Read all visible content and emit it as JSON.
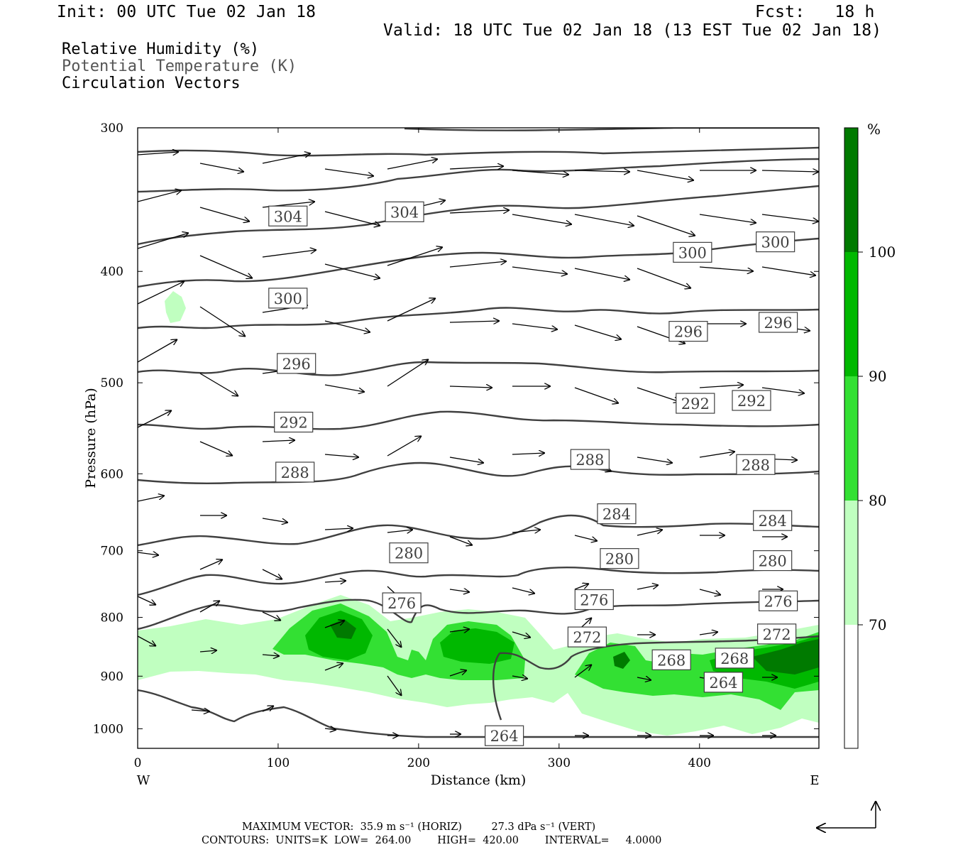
{
  "header": {
    "init": "Init: 00 UTC Tue 02 Jan 18",
    "fcst": "Fcst:   18 h",
    "valid": "Valid: 18 UTC Tue 02 Jan 18 (13 EST Tue 02 Jan 18)"
  },
  "legend": {
    "rh": "Relative Humidity (%)",
    "theta": "Potential Temperature (K)",
    "vectors": "Circulation Vectors"
  },
  "colors": {
    "rh70": "#c0ffc0",
    "rh80": "#33e033",
    "rh90": "#00b800",
    "rh100": "#007a00",
    "contour": "#404040"
  },
  "chart_data": {
    "type": "cross-section",
    "xlabel": "Distance (km)",
    "ylabel": "Pressure (hPa)",
    "x_ticks": [
      0,
      100,
      200,
      300,
      400
    ],
    "y_ticks": [
      300,
      400,
      500,
      600,
      700,
      800,
      900,
      1000
    ],
    "xlim": [
      0,
      485
    ],
    "ylim": [
      1040,
      300
    ],
    "y_scale": "log",
    "x_end_labels": {
      "left": "W",
      "right": "E"
    },
    "colorbar": {
      "unit": "%",
      "levels": [
        70,
        80,
        90,
        100
      ],
      "tick_labels": [
        "100",
        "90",
        "80",
        "70"
      ]
    },
    "theta_contours": [
      {
        "value": 264,
        "label": "264"
      },
      {
        "value": 268,
        "label": "268"
      },
      {
        "value": 272,
        "label": "272"
      },
      {
        "value": 276,
        "label": "276"
      },
      {
        "value": 280,
        "label": "280"
      },
      {
        "value": 284,
        "label": "284"
      },
      {
        "value": 288,
        "label": "288"
      },
      {
        "value": 292,
        "label": "292"
      },
      {
        "value": 296,
        "label": "296"
      },
      {
        "value": 300,
        "label": "300"
      },
      {
        "value": 304,
        "label": "304"
      }
    ],
    "contour_labels": [
      {
        "text": "304",
        "x": 107,
        "p": 358
      },
      {
        "text": "304",
        "x": 190,
        "p": 355
      },
      {
        "text": "300",
        "x": 395,
        "p": 385
      },
      {
        "text": "300",
        "x": 454,
        "p": 377
      },
      {
        "text": "300",
        "x": 107,
        "p": 422
      },
      {
        "text": "296",
        "x": 392,
        "p": 451
      },
      {
        "text": "296",
        "x": 456,
        "p": 443
      },
      {
        "text": "296",
        "x": 113,
        "p": 481
      },
      {
        "text": "292",
        "x": 397,
        "p": 521
      },
      {
        "text": "292",
        "x": 437,
        "p": 518
      },
      {
        "text": "292",
        "x": 111,
        "p": 541
      },
      {
        "text": "288",
        "x": 112,
        "p": 598
      },
      {
        "text": "288",
        "x": 322,
        "p": 583
      },
      {
        "text": "288",
        "x": 440,
        "p": 589
      },
      {
        "text": "284",
        "x": 341,
        "p": 650
      },
      {
        "text": "284",
        "x": 452,
        "p": 659
      },
      {
        "text": "280",
        "x": 193,
        "p": 703
      },
      {
        "text": "280",
        "x": 343,
        "p": 711
      },
      {
        "text": "280",
        "x": 452,
        "p": 714
      },
      {
        "text": "276",
        "x": 188,
        "p": 777
      },
      {
        "text": "276",
        "x": 325,
        "p": 772
      },
      {
        "text": "276",
        "x": 456,
        "p": 774
      },
      {
        "text": "272",
        "x": 320,
        "p": 832
      },
      {
        "text": "272",
        "x": 455,
        "p": 827
      },
      {
        "text": "268",
        "x": 380,
        "p": 871
      },
      {
        "text": "268",
        "x": 425,
        "p": 868
      },
      {
        "text": "264",
        "x": 417,
        "p": 911
      },
      {
        "text": "264",
        "x": 261,
        "p": 1014
      }
    ],
    "maximum_vector": "MAXIMUM VECTOR:  35.9 m s⁻¹ (HORIZ)         27.3 dPa s⁻¹ (VERT)",
    "contours_info": "CONTOURS:  UNITS=K  LOW=  264.00        HIGH=  420.00        INTERVAL=     4.0000"
  }
}
